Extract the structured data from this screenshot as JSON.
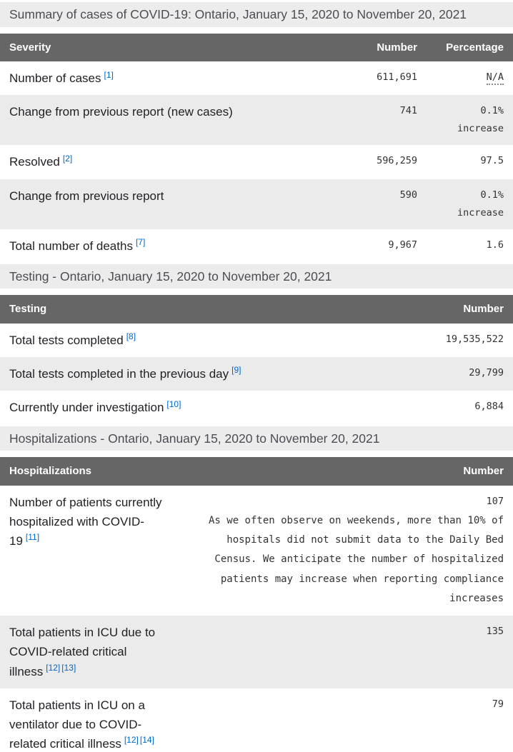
{
  "colors": {
    "table_header_bg": "#666666",
    "section_band_bg": "#ececec",
    "shaded_row_bg": "#ebebeb",
    "link_blue": "#0066cc",
    "header_text": "#ffffff",
    "body_text": "#222226",
    "mono_text": "#333333"
  },
  "summary": {
    "heading": "Summary of cases of COVID-19: Ontario, January 15, 2020 to November 20, 2021",
    "head": {
      "c0": "Severity",
      "c1": "Number",
      "c2": "Percentage"
    },
    "rows": [
      {
        "label": "Number of cases",
        "ref0": "[1]",
        "number": "611,691",
        "pct": "N/A"
      },
      {
        "label": "Change from previous report (new cases)",
        "number": "741",
        "pct": "0.1% increase"
      },
      {
        "label": "Resolved",
        "ref0": "[2]",
        "number": "596,259",
        "pct": "97.5"
      },
      {
        "label": "Change from previous report",
        "number": "590",
        "pct": "0.1% increase"
      },
      {
        "label": "Total number of deaths",
        "ref0": "[7]",
        "number": "9,967",
        "pct": "1.6"
      }
    ]
  },
  "testing": {
    "heading": "Testing - Ontario, January 15, 2020 to November 20, 2021",
    "head": {
      "c0": "Testing",
      "c1": "Number"
    },
    "rows": [
      {
        "label": "Total tests completed",
        "ref0": "[8]",
        "number": "19,535,522"
      },
      {
        "label": "Total tests completed in the previous day",
        "ref0": "[9]",
        "number": "29,799"
      },
      {
        "label": "Currently under investigation",
        "ref0": "[10]",
        "number": "6,884"
      }
    ]
  },
  "hosp": {
    "heading": "Hospitalizations - Ontario, January 15, 2020 to November 20, 2021",
    "head": {
      "c0": "Hospitalizations",
      "c1": "Number"
    },
    "rows": [
      {
        "label": "Number of patients currently hospitalized with COVID-19",
        "ref0": "[11]",
        "number": "107",
        "note": "As we often observe on weekends, more than 10% of hospitals did not submit data to the Daily Bed Census. We anticipate the number of hospitalized patients may increase when reporting compliance increases"
      },
      {
        "label": "Total patients in ICU due to COVID-related critical illness",
        "ref0": "[12]",
        "ref1": "[13]",
        "number": "135"
      },
      {
        "label": "Total patients in ICU on a ventilator due to COVID-related critical illness",
        "ref0": "[12]",
        "ref1": "[14]",
        "number": "79"
      }
    ]
  }
}
